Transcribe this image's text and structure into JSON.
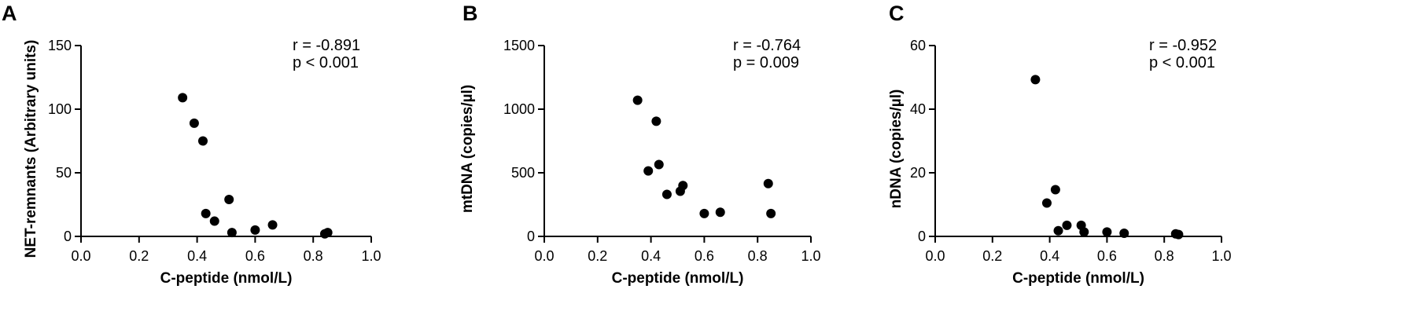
{
  "chart_data": [
    {
      "type": "scatter",
      "panel": "A",
      "xlabel": "C-peptide (nmol/L)",
      "ylabel": "NET-remnants (Arbitrary units)",
      "xlim": [
        0,
        1.0
      ],
      "ylim": [
        0,
        150
      ],
      "xticks": [
        "0.0",
        "0.2",
        "0.4",
        "0.6",
        "0.8",
        "1.0"
      ],
      "yticks": [
        "0",
        "50",
        "100",
        "150"
      ],
      "annotation": [
        "r = -0.891",
        "p < 0.001"
      ],
      "grid": false,
      "points": [
        {
          "x": 0.35,
          "y": 109
        },
        {
          "x": 0.39,
          "y": 89
        },
        {
          "x": 0.42,
          "y": 75
        },
        {
          "x": 0.43,
          "y": 18
        },
        {
          "x": 0.46,
          "y": 12
        },
        {
          "x": 0.51,
          "y": 29
        },
        {
          "x": 0.52,
          "y": 3
        },
        {
          "x": 0.6,
          "y": 5
        },
        {
          "x": 0.66,
          "y": 9
        },
        {
          "x": 0.84,
          "y": 2
        },
        {
          "x": 0.85,
          "y": 3
        }
      ]
    },
    {
      "type": "scatter",
      "panel": "B",
      "xlabel": "C-peptide (nmol/L)",
      "ylabel": "mtDNA (copies/µl)",
      "xlim": [
        0,
        1.0
      ],
      "ylim": [
        0,
        1500
      ],
      "xticks": [
        "0.0",
        "0.2",
        "0.4",
        "0.6",
        "0.8",
        "1.0"
      ],
      "yticks": [
        "0",
        "500",
        "1000",
        "1500"
      ],
      "annotation": [
        "r = -0.764",
        "p = 0.009"
      ],
      "grid": false,
      "points": [
        {
          "x": 0.35,
          "y": 1070
        },
        {
          "x": 0.39,
          "y": 515
        },
        {
          "x": 0.42,
          "y": 905
        },
        {
          "x": 0.43,
          "y": 565
        },
        {
          "x": 0.46,
          "y": 330
        },
        {
          "x": 0.51,
          "y": 355
        },
        {
          "x": 0.52,
          "y": 400
        },
        {
          "x": 0.6,
          "y": 180
        },
        {
          "x": 0.66,
          "y": 190
        },
        {
          "x": 0.84,
          "y": 415
        },
        {
          "x": 0.85,
          "y": 180
        }
      ]
    },
    {
      "type": "scatter",
      "panel": "C",
      "xlabel": "C-peptide (nmol/L)",
      "ylabel": "nDNA (copies/µl)",
      "xlim": [
        0,
        1.0
      ],
      "ylim": [
        0,
        60
      ],
      "xticks": [
        "0.0",
        "0.2",
        "0.4",
        "0.6",
        "0.8",
        "1.0"
      ],
      "yticks": [
        "0",
        "20",
        "40",
        "60"
      ],
      "annotation": [
        "r = -0.952",
        "p < 0.001"
      ],
      "grid": false,
      "points": [
        {
          "x": 0.35,
          "y": 49.3
        },
        {
          "x": 0.39,
          "y": 10.5
        },
        {
          "x": 0.42,
          "y": 14.7
        },
        {
          "x": 0.43,
          "y": 1.8
        },
        {
          "x": 0.46,
          "y": 3.5
        },
        {
          "x": 0.51,
          "y": 3.5
        },
        {
          "x": 0.52,
          "y": 1.4
        },
        {
          "x": 0.6,
          "y": 1.4
        },
        {
          "x": 0.66,
          "y": 1.0
        },
        {
          "x": 0.84,
          "y": 0.8
        },
        {
          "x": 0.85,
          "y": 0.6
        }
      ]
    }
  ]
}
